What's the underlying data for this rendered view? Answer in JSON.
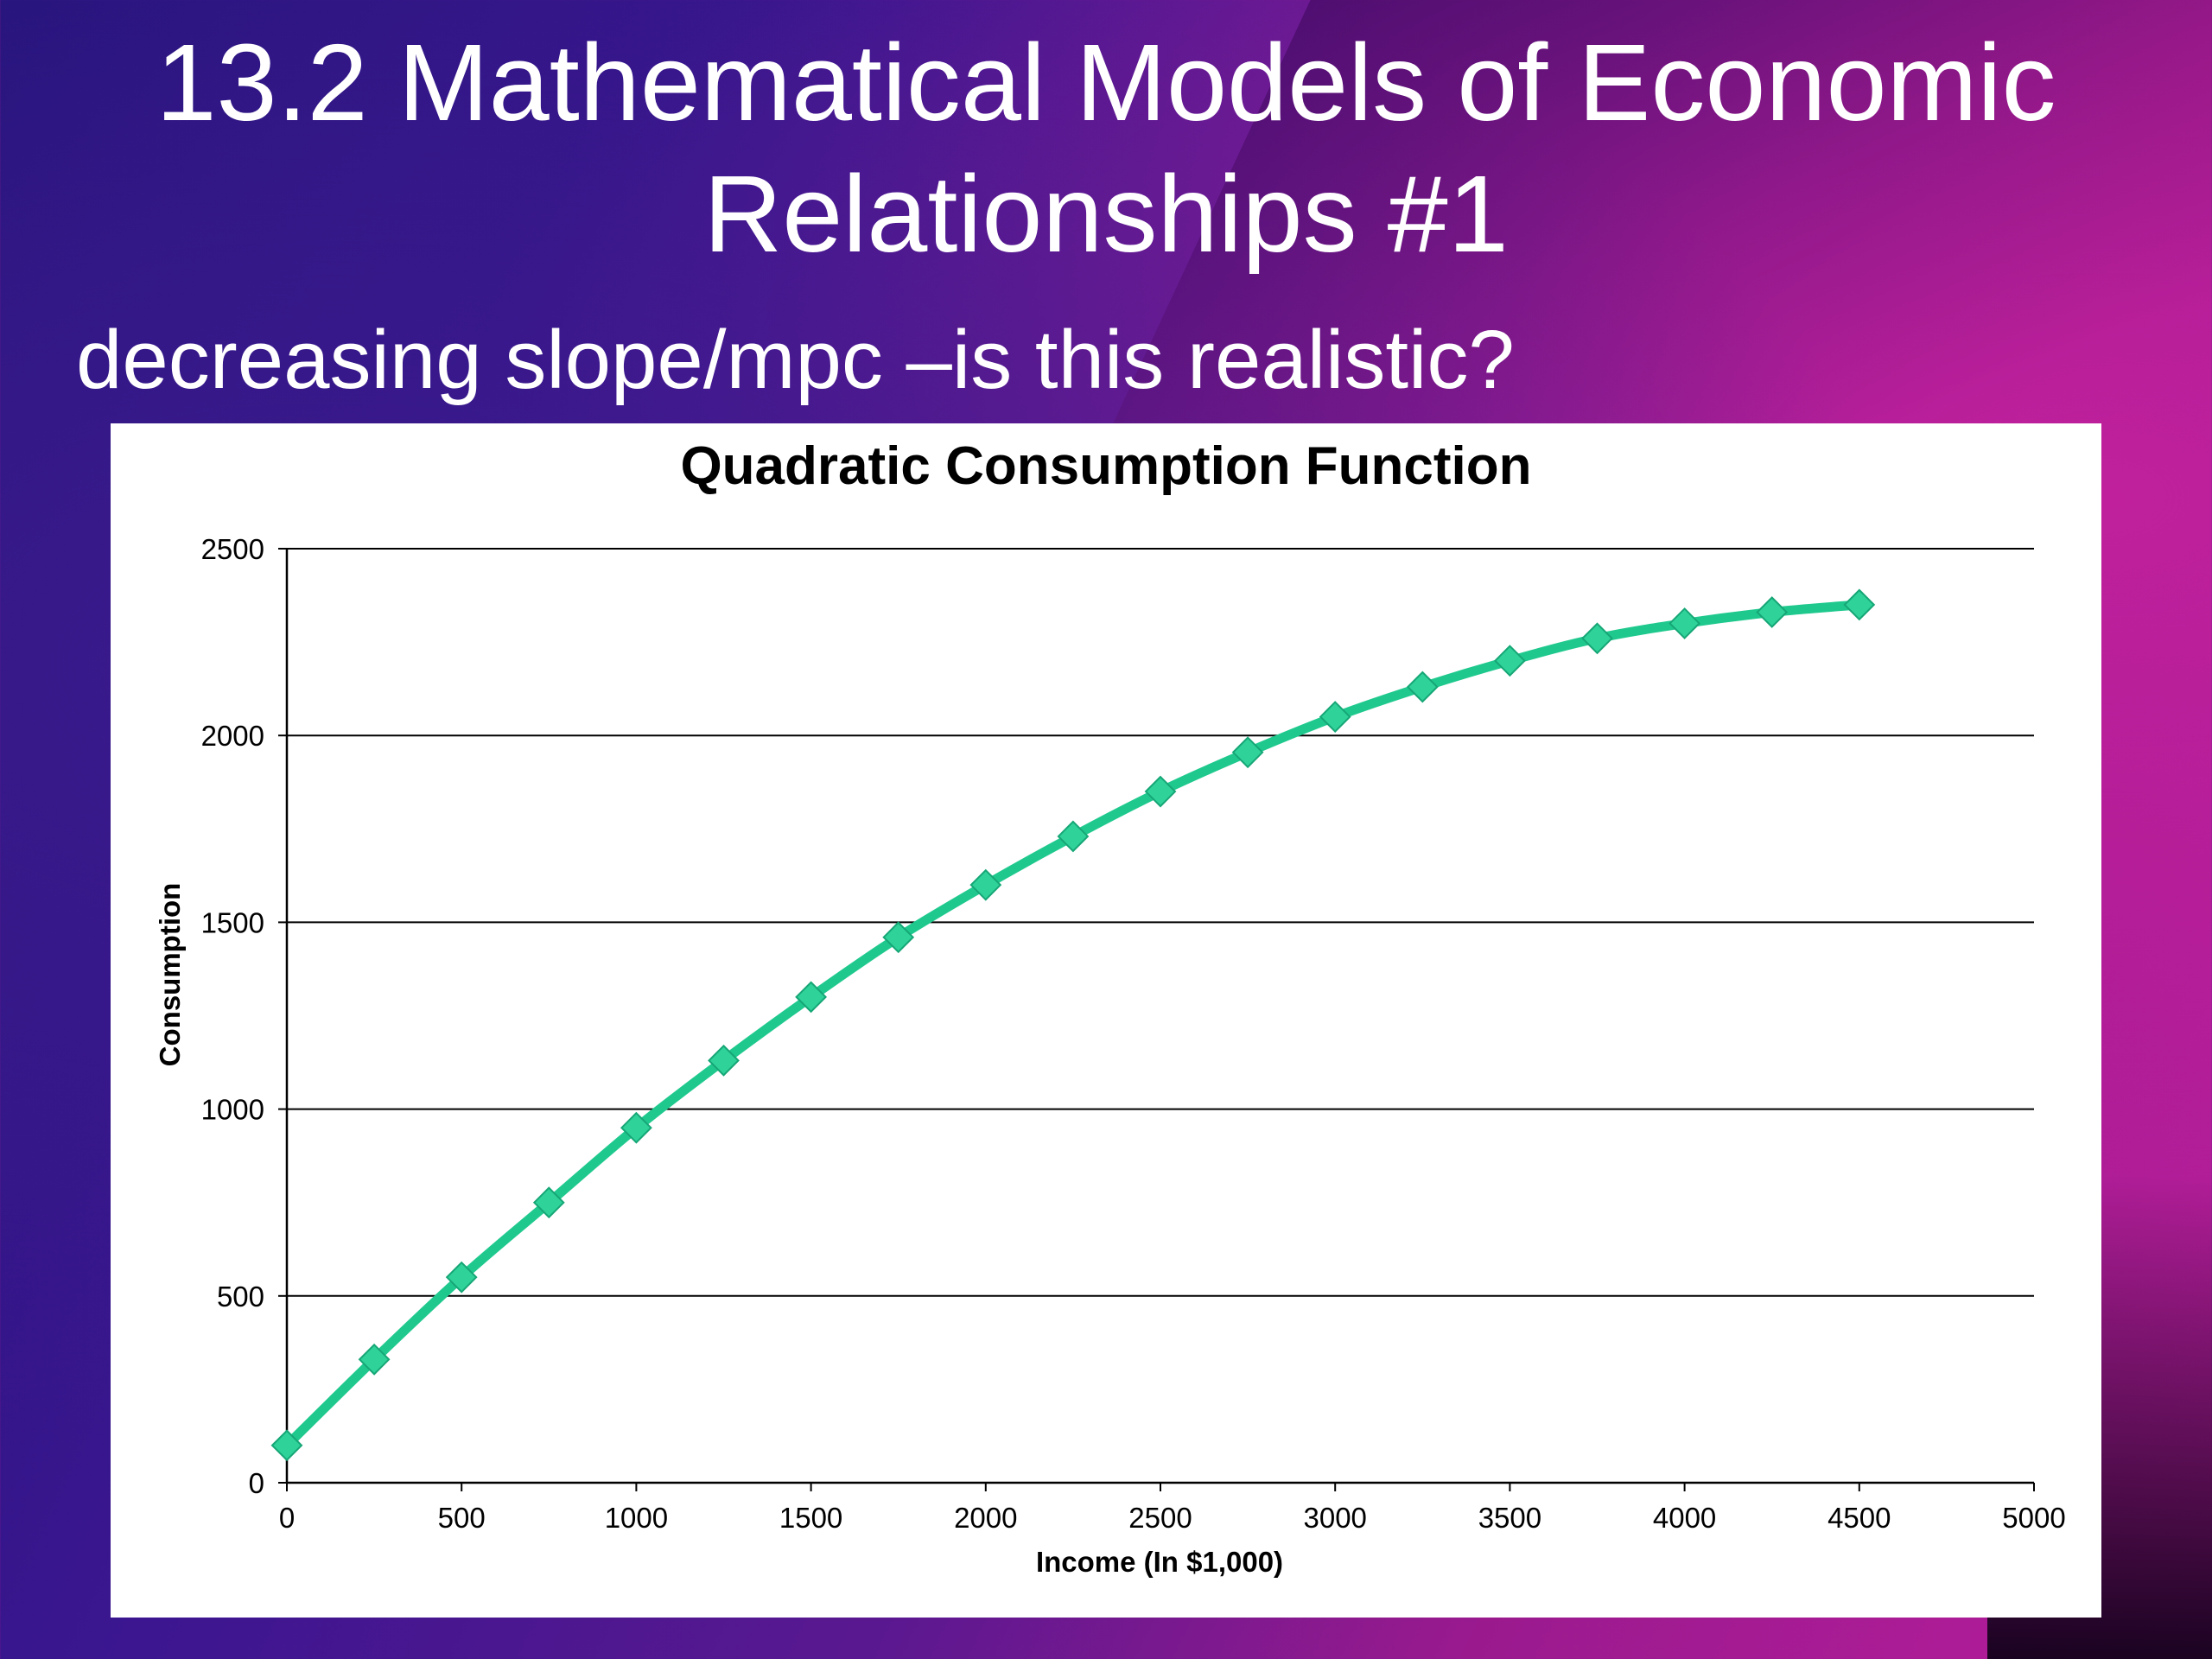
{
  "slide": {
    "title": "13.2 Mathematical Models of Economic Relationships #1",
    "subtitle": "decreasing slope/mpc –is this realistic?"
  },
  "colors": {
    "series": "#1fc98e",
    "marker": "#2fd39a",
    "marker_edge": "#16a676",
    "grid": "#000000"
  },
  "chart_data": {
    "type": "line",
    "title": "Quadratic Consumption Function",
    "xlabel": "Income (In $1,000)",
    "ylabel": "Consumption",
    "xlim": [
      0,
      5000
    ],
    "ylim": [
      0,
      2500
    ],
    "xticks": [
      0,
      500,
      1000,
      1500,
      2000,
      2500,
      3000,
      3500,
      4000,
      4500,
      5000
    ],
    "yticks": [
      0,
      500,
      1000,
      1500,
      2000,
      2500
    ],
    "grid": "horizontal",
    "marker": "diamond",
    "series": [
      {
        "x": [
          0,
          250,
          500,
          750,
          1000,
          1250,
          1500,
          1750,
          2000,
          2250,
          2500,
          2750,
          3000,
          3250,
          3500,
          3750,
          4000,
          4250,
          4500
        ],
        "y": [
          100,
          330,
          550,
          750,
          950,
          1130,
          1300,
          1460,
          1600,
          1730,
          1850,
          1955,
          2050,
          2130,
          2200,
          2260,
          2300,
          2330,
          2350
        ]
      }
    ]
  }
}
